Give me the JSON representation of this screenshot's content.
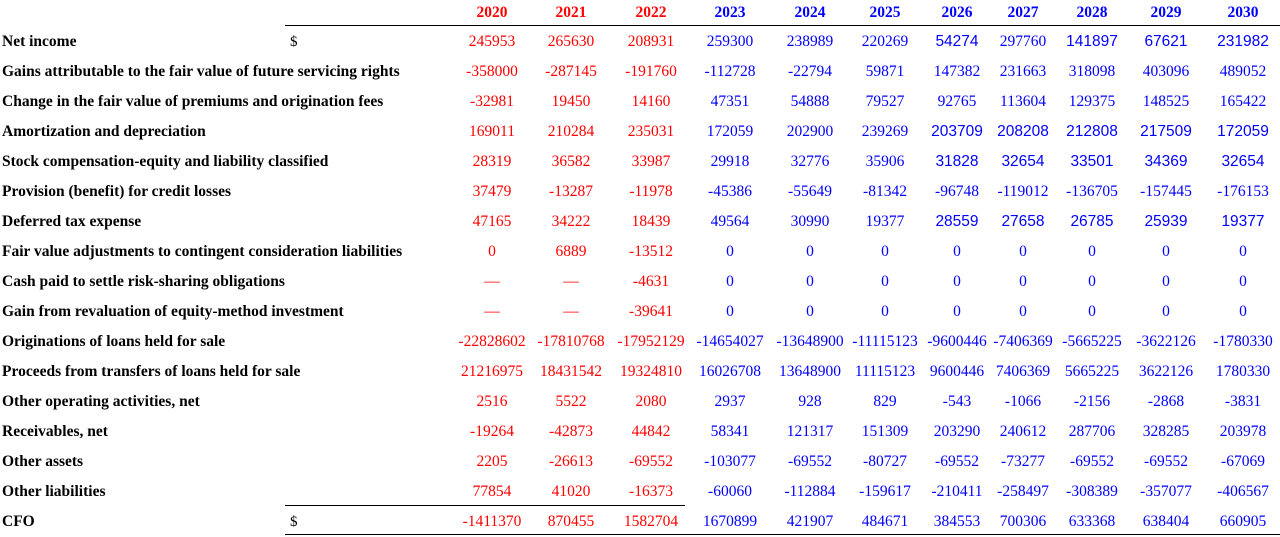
{
  "years": [
    "2020",
    "2021",
    "2022",
    "2023",
    "2024",
    "2025",
    "2026",
    "2027",
    "2028",
    "2029",
    "2030"
  ],
  "year_types": [
    "hist",
    "hist",
    "hist",
    "proj",
    "proj",
    "proj",
    "proj",
    "proj",
    "proj",
    "proj",
    "proj"
  ],
  "colors": {
    "historical": "#ff0000",
    "projected": "#0000ff",
    "label": "#000000"
  },
  "rows": [
    {
      "label": "Net income",
      "currency": "$",
      "values": [
        "245953",
        "265630",
        "208931",
        "259300",
        "238989",
        "220269",
        "54274",
        "297760",
        "141897",
        "67621",
        "231982"
      ]
    },
    {
      "label": "Gains attributable to the fair value of future servicing rights",
      "currency": "",
      "values": [
        "-358000",
        "-287145",
        "-191760",
        "-112728",
        "-22794",
        "59871",
        "147382",
        "231663",
        "318098",
        "403096",
        "489052"
      ]
    },
    {
      "label": "Change in the fair value of premiums and origination fees",
      "currency": "",
      "values": [
        "-32981",
        "19450",
        "14160",
        "47351",
        "54888",
        "79527",
        "92765",
        "113604",
        "129375",
        "148525",
        "165422"
      ]
    },
    {
      "label": "Amortization and depreciation",
      "currency": "",
      "values": [
        "169011",
        "210284",
        "235031",
        "172059",
        "202900",
        "239269",
        "203709",
        "208208",
        "212808",
        "217509",
        "172059"
      ]
    },
    {
      "label": "Stock compensation-equity and liability classified",
      "currency": "",
      "values": [
        "28319",
        "36582",
        "33987",
        "29918",
        "32776",
        "35906",
        "31828",
        "32654",
        "33501",
        "34369",
        "32654"
      ]
    },
    {
      "label": "Provision (benefit) for credit losses",
      "currency": "",
      "values": [
        "37479",
        "-13287",
        "-11978",
        "-45386",
        "-55649",
        "-81342",
        "-96748",
        "-119012",
        "-136705",
        "-157445",
        "-176153"
      ]
    },
    {
      "label": "Deferred tax expense",
      "currency": "",
      "values": [
        "47165",
        "34222",
        "18439",
        "49564",
        "30990",
        "19377",
        "28559",
        "27658",
        "26785",
        "25939",
        "19377"
      ]
    },
    {
      "label": "Fair value adjustments to contingent consideration liabilities",
      "currency": "",
      "values": [
        "0",
        "6889",
        "-13512",
        "0",
        "0",
        "0",
        "0",
        "0",
        "0",
        "0",
        "0"
      ]
    },
    {
      "label": "Cash paid to settle risk-sharing obligations",
      "currency": "",
      "values": [
        "—",
        "—",
        "-4631",
        "0",
        "0",
        "0",
        "0",
        "0",
        "0",
        "0",
        "0"
      ]
    },
    {
      "label": "Gain from revaluation of equity-method investment",
      "currency": "",
      "values": [
        "—",
        "—",
        "-39641",
        "0",
        "0",
        "0",
        "0",
        "0",
        "0",
        "0",
        "0"
      ]
    },
    {
      "label": "Originations of loans held for sale",
      "currency": "",
      "values": [
        "-22828602",
        "-17810768",
        "-17952129",
        "-14654027",
        "-13648900",
        "-11115123",
        "-9600446",
        "-7406369",
        "-5665225",
        "-3622126",
        "-1780330"
      ]
    },
    {
      "label": "Proceeds from transfers of loans held for sale",
      "currency": "",
      "values": [
        "21216975",
        "18431542",
        "19324810",
        "16026708",
        "13648900",
        "11115123",
        "9600446",
        "7406369",
        "5665225",
        "3622126",
        "1780330"
      ]
    },
    {
      "label": "Other operating activities, net",
      "currency": "",
      "values": [
        "2516",
        "5522",
        "2080",
        "2937",
        "928",
        "829",
        "-543",
        "-1066",
        "-2156",
        "-2868",
        "-3831"
      ]
    },
    {
      "label": "Receivables, net",
      "currency": "",
      "values": [
        "-19264",
        "-42873",
        "44842",
        "58341",
        "121317",
        "151309",
        "203290",
        "240612",
        "287706",
        "328285",
        "203978"
      ]
    },
    {
      "label": "Other assets",
      "currency": "",
      "values": [
        "2205",
        "-26613",
        "-69552",
        "-103077",
        "-69552",
        "-80727",
        "-69552",
        "-73277",
        "-69552",
        "-69552",
        "-67069"
      ]
    },
    {
      "label": "Other liabilities",
      "currency": "",
      "values": [
        "77854",
        "41020",
        "-16373",
        "-60060",
        "-112884",
        "-159617",
        "-210411",
        "-258497",
        "-308389",
        "-357077",
        "-406567"
      ]
    },
    {
      "label": "CFO",
      "currency": "$",
      "values": [
        "-1411370",
        "870455",
        "1582704",
        "1670899",
        "421907",
        "484671",
        "384553",
        "700306",
        "633368",
        "638404",
        "660905"
      ]
    }
  ]
}
